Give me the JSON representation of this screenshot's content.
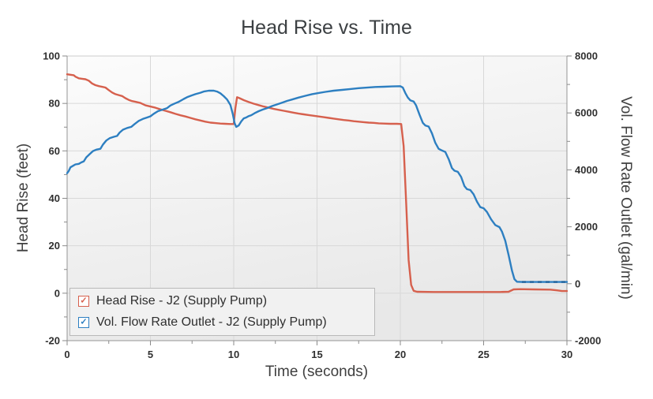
{
  "title": "Head Rise vs. Time",
  "icons": {
    "check": "✓"
  },
  "legend": {
    "items": [
      {
        "label": "Head Rise - J2 (Supply Pump)",
        "color": "#d6604d",
        "checked": true
      },
      {
        "label": "Vol. Flow Rate Outlet - J2 (Supply Pump)",
        "color": "#2d7fc1",
        "checked": true
      }
    ]
  },
  "colors": {
    "head_rise_series": "#d6604d",
    "flow_rate_series": "#2d7fc1",
    "grid": "#d8d8d8",
    "axis": "#949494",
    "plot_border": "#cccccc",
    "plot_bg_top": "#fcfcfc",
    "plot_bg_bottom": "#e8e8e8",
    "legend_bg": "#f1f1f1",
    "text": "#3c4043"
  },
  "chart_data": {
    "type": "line",
    "title": "Head Rise vs. Time",
    "xlabel": "Time (seconds)",
    "ylabel_left": "Head Rise (feet)",
    "ylabel_right": "Vol. Flow Rate Outlet (gal/min)",
    "x_range": [
      0,
      30
    ],
    "x_ticks": [
      0,
      5,
      10,
      15,
      20,
      25,
      30
    ],
    "x_minor_step": 2.5,
    "y_left_range": [
      -20,
      100
    ],
    "y_left_ticks": [
      100,
      80,
      60,
      40,
      20,
      0,
      -20
    ],
    "y_left_minor_step": 10,
    "y_right_range": [
      -2000,
      8000
    ],
    "y_right_ticks": [
      8000,
      6000,
      4000,
      2000,
      0,
      -2000
    ],
    "y_right_minor_step": 1000,
    "grid": true,
    "legend_position": "bottom-left",
    "series": [
      {
        "name": "Head Rise - J2 (Supply Pump)",
        "axis": "left",
        "units": "feet",
        "color": "#d6604d",
        "points": [
          [
            0,
            92.3
          ],
          [
            0.2,
            92.1
          ],
          [
            0.4,
            91.9
          ],
          [
            0.5,
            91.3
          ],
          [
            0.7,
            90.6
          ],
          [
            0.9,
            90.4
          ],
          [
            1.1,
            90.2
          ],
          [
            1.3,
            89.6
          ],
          [
            1.5,
            88.4
          ],
          [
            1.7,
            87.7
          ],
          [
            1.9,
            87.3
          ],
          [
            2.1,
            87.0
          ],
          [
            2.3,
            86.7
          ],
          [
            2.5,
            85.6
          ],
          [
            2.7,
            84.6
          ],
          [
            2.9,
            83.9
          ],
          [
            3.1,
            83.5
          ],
          [
            3.3,
            83.1
          ],
          [
            3.5,
            82.2
          ],
          [
            3.7,
            81.5
          ],
          [
            3.9,
            81.0
          ],
          [
            4.1,
            80.7
          ],
          [
            4.4,
            80.2
          ],
          [
            4.7,
            79.2
          ],
          [
            5.0,
            78.7
          ],
          [
            5.3,
            78.2
          ],
          [
            5.6,
            77.5
          ],
          [
            5.9,
            76.9
          ],
          [
            6.2,
            76.3
          ],
          [
            6.5,
            75.6
          ],
          [
            6.8,
            75.0
          ],
          [
            7.1,
            74.5
          ],
          [
            7.4,
            73.9
          ],
          [
            7.7,
            73.3
          ],
          [
            8.0,
            72.8
          ],
          [
            8.3,
            72.3
          ],
          [
            8.6,
            71.9
          ],
          [
            8.9,
            71.7
          ],
          [
            9.2,
            71.5
          ],
          [
            9.5,
            71.4
          ],
          [
            9.8,
            71.3
          ],
          [
            10.0,
            71.3
          ],
          [
            10.1,
            78.0
          ],
          [
            10.2,
            82.6
          ],
          [
            10.35,
            82.2
          ],
          [
            10.6,
            81.4
          ],
          [
            10.9,
            80.6
          ],
          [
            11.2,
            79.9
          ],
          [
            11.5,
            79.3
          ],
          [
            11.8,
            78.7
          ],
          [
            12.1,
            78.2
          ],
          [
            12.4,
            77.7
          ],
          [
            12.7,
            77.3
          ],
          [
            13.0,
            76.9
          ],
          [
            13.3,
            76.5
          ],
          [
            13.6,
            76.1
          ],
          [
            13.9,
            75.7
          ],
          [
            14.2,
            75.4
          ],
          [
            14.5,
            75.1
          ],
          [
            14.8,
            74.8
          ],
          [
            15.1,
            74.5
          ],
          [
            15.4,
            74.2
          ],
          [
            15.7,
            73.9
          ],
          [
            16.0,
            73.6
          ],
          [
            16.3,
            73.3
          ],
          [
            16.6,
            73.0
          ],
          [
            16.9,
            72.8
          ],
          [
            17.2,
            72.5
          ],
          [
            17.5,
            72.3
          ],
          [
            17.8,
            72.1
          ],
          [
            18.1,
            71.9
          ],
          [
            18.4,
            71.8
          ],
          [
            18.7,
            71.6
          ],
          [
            19.0,
            71.5
          ],
          [
            19.4,
            71.4
          ],
          [
            19.8,
            71.4
          ],
          [
            20.05,
            71.3
          ],
          [
            20.2,
            62
          ],
          [
            20.35,
            38
          ],
          [
            20.5,
            14
          ],
          [
            20.65,
            3.5
          ],
          [
            20.8,
            1.0
          ],
          [
            21.0,
            0.6
          ],
          [
            22,
            0.5
          ],
          [
            23,
            0.5
          ],
          [
            24,
            0.5
          ],
          [
            25,
            0.5
          ],
          [
            26,
            0.5
          ],
          [
            26.5,
            0.6
          ],
          [
            26.8,
            1.6
          ],
          [
            27.2,
            1.7
          ],
          [
            28,
            1.6
          ],
          [
            29,
            1.5
          ],
          [
            29.4,
            1.2
          ],
          [
            29.7,
            0.9
          ],
          [
            30,
            0.9
          ]
        ]
      },
      {
        "name": "Vol. Flow Rate Outlet - J2 (Supply Pump)",
        "axis": "right",
        "units": "gal/min",
        "color": "#2d7fc1",
        "dash_tail_from": 27.2,
        "points": [
          [
            0,
            3880
          ],
          [
            0.1,
            3960
          ],
          [
            0.2,
            4090
          ],
          [
            0.35,
            4140
          ],
          [
            0.5,
            4190
          ],
          [
            0.7,
            4210
          ],
          [
            0.85,
            4260
          ],
          [
            1.0,
            4300
          ],
          [
            1.15,
            4440
          ],
          [
            1.35,
            4550
          ],
          [
            1.55,
            4660
          ],
          [
            1.75,
            4710
          ],
          [
            2.0,
            4740
          ],
          [
            2.15,
            4890
          ],
          [
            2.35,
            5030
          ],
          [
            2.55,
            5110
          ],
          [
            2.8,
            5160
          ],
          [
            3.0,
            5190
          ],
          [
            3.15,
            5310
          ],
          [
            3.35,
            5410
          ],
          [
            3.6,
            5470
          ],
          [
            3.85,
            5510
          ],
          [
            4.05,
            5610
          ],
          [
            4.3,
            5720
          ],
          [
            4.55,
            5790
          ],
          [
            4.8,
            5840
          ],
          [
            5.0,
            5880
          ],
          [
            5.2,
            5970
          ],
          [
            5.45,
            6060
          ],
          [
            5.7,
            6110
          ],
          [
            6.0,
            6170
          ],
          [
            6.2,
            6260
          ],
          [
            6.45,
            6330
          ],
          [
            6.7,
            6390
          ],
          [
            7.0,
            6490
          ],
          [
            7.2,
            6550
          ],
          [
            7.45,
            6610
          ],
          [
            7.7,
            6660
          ],
          [
            8.0,
            6710
          ],
          [
            8.2,
            6750
          ],
          [
            8.5,
            6780
          ],
          [
            8.8,
            6780
          ],
          [
            9.0,
            6750
          ],
          [
            9.2,
            6690
          ],
          [
            9.4,
            6590
          ],
          [
            9.6,
            6470
          ],
          [
            9.8,
            6280
          ],
          [
            9.95,
            5950
          ],
          [
            10.05,
            5640
          ],
          [
            10.15,
            5510
          ],
          [
            10.3,
            5560
          ],
          [
            10.45,
            5700
          ],
          [
            10.6,
            5810
          ],
          [
            10.75,
            5840
          ],
          [
            10.9,
            5890
          ],
          [
            11.05,
            5920
          ],
          [
            11.25,
            5990
          ],
          [
            11.5,
            6060
          ],
          [
            11.75,
            6120
          ],
          [
            12.0,
            6170
          ],
          [
            12.3,
            6240
          ],
          [
            12.6,
            6300
          ],
          [
            12.9,
            6360
          ],
          [
            13.2,
            6420
          ],
          [
            13.5,
            6470
          ],
          [
            13.9,
            6540
          ],
          [
            14.3,
            6600
          ],
          [
            14.7,
            6660
          ],
          [
            15.1,
            6700
          ],
          [
            15.5,
            6740
          ],
          [
            16.0,
            6780
          ],
          [
            16.5,
            6810
          ],
          [
            17.0,
            6840
          ],
          [
            17.5,
            6870
          ],
          [
            18.0,
            6890
          ],
          [
            18.5,
            6910
          ],
          [
            19.0,
            6920
          ],
          [
            19.5,
            6930
          ],
          [
            20.0,
            6940
          ],
          [
            20.15,
            6890
          ],
          [
            20.3,
            6700
          ],
          [
            20.45,
            6540
          ],
          [
            20.6,
            6440
          ],
          [
            20.8,
            6400
          ],
          [
            20.95,
            6260
          ],
          [
            21.15,
            5940
          ],
          [
            21.35,
            5650
          ],
          [
            21.5,
            5560
          ],
          [
            21.7,
            5520
          ],
          [
            21.9,
            5280
          ],
          [
            22.1,
            4950
          ],
          [
            22.3,
            4740
          ],
          [
            22.5,
            4680
          ],
          [
            22.7,
            4630
          ],
          [
            22.9,
            4380
          ],
          [
            23.1,
            4060
          ],
          [
            23.25,
            3970
          ],
          [
            23.45,
            3930
          ],
          [
            23.65,
            3750
          ],
          [
            23.85,
            3430
          ],
          [
            24.0,
            3320
          ],
          [
            24.2,
            3290
          ],
          [
            24.4,
            3140
          ],
          [
            24.6,
            2880
          ],
          [
            24.8,
            2690
          ],
          [
            25.0,
            2650
          ],
          [
            25.2,
            2520
          ],
          [
            25.45,
            2260
          ],
          [
            25.7,
            2060
          ],
          [
            25.95,
            1990
          ],
          [
            26.1,
            1830
          ],
          [
            26.3,
            1510
          ],
          [
            26.5,
            1010
          ],
          [
            26.7,
            460
          ],
          [
            26.85,
            160
          ],
          [
            27.0,
            70
          ],
          [
            27.3,
            60
          ],
          [
            28,
            60
          ],
          [
            29,
            60
          ],
          [
            30,
            60
          ]
        ]
      }
    ]
  }
}
